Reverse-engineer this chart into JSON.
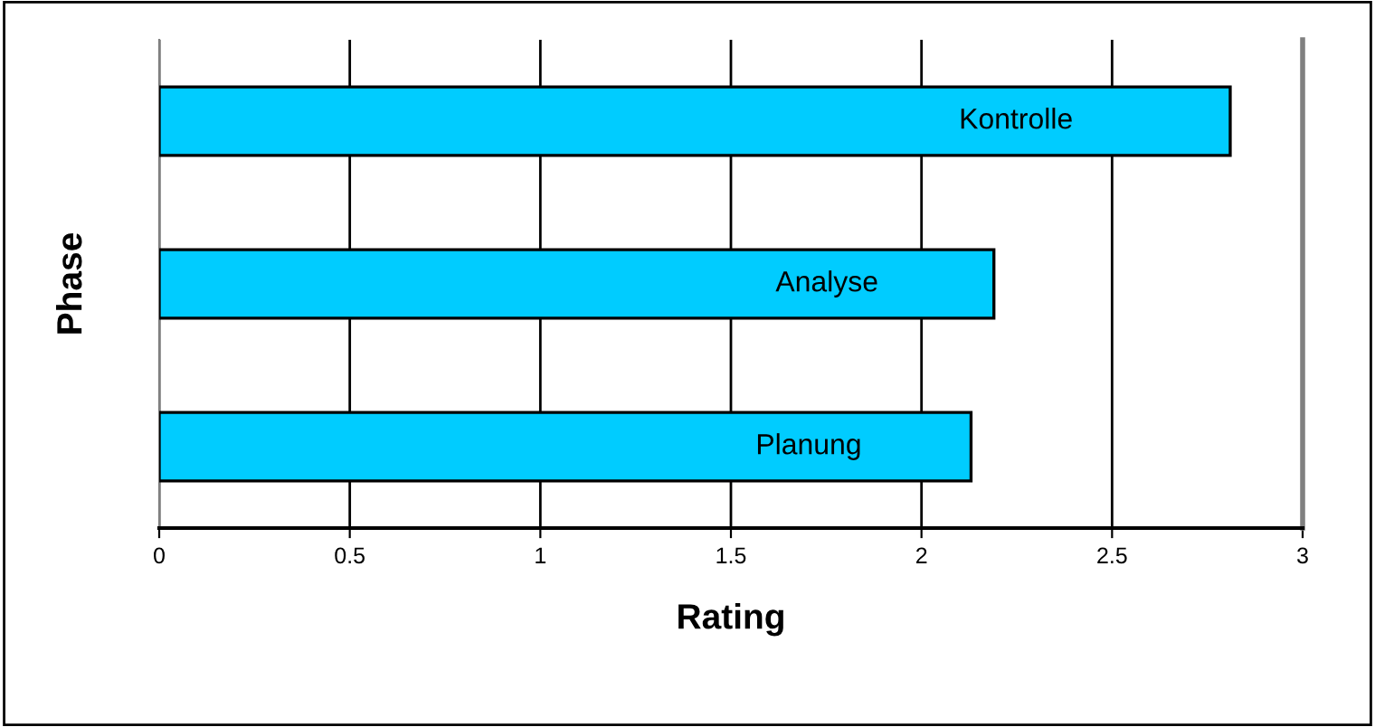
{
  "chart_data": {
    "type": "bar",
    "orientation": "horizontal",
    "categories": [
      "Kontrolle",
      "Analyse",
      "Planung"
    ],
    "values": [
      2.81,
      2.19,
      2.13
    ],
    "color": "#00ccff",
    "xlabel": "Rating",
    "ylabel": "Phase",
    "xlim": [
      0,
      3
    ],
    "xticks": [
      0,
      0.5,
      1,
      1.5,
      2,
      2.5,
      3
    ],
    "grid": "x"
  }
}
